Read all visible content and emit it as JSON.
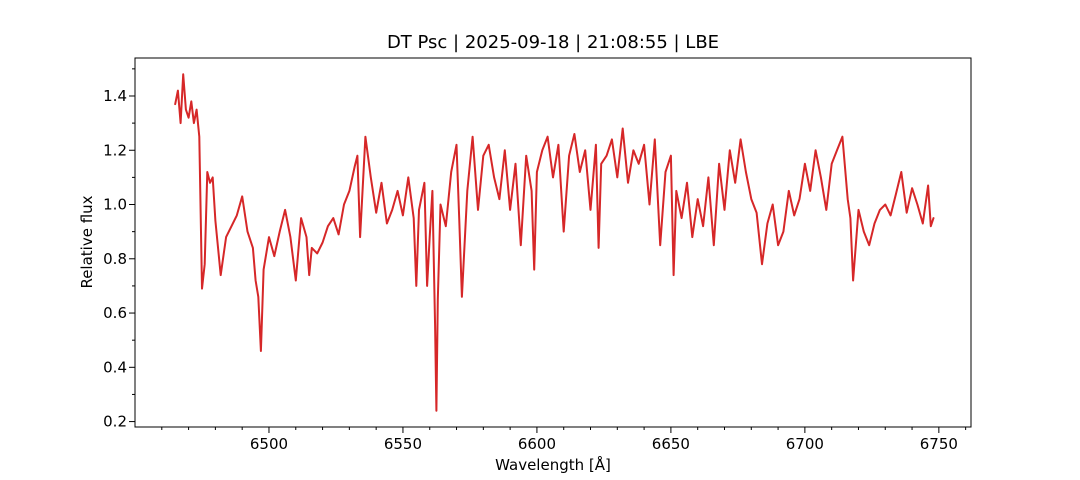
{
  "chart_data": {
    "type": "line",
    "title": "DT Psc | 2025-09-18 | 21:08:55 | LBE",
    "xlabel": "Wavelength [Å]",
    "ylabel": "Relative flux",
    "xlim": [
      6450,
      6762
    ],
    "ylim": [
      0.18,
      1.54
    ],
    "xticks": [
      6500,
      6550,
      6600,
      6650,
      6700,
      6750
    ],
    "xticks_minor": [
      6460,
      6470,
      6480,
      6490,
      6510,
      6520,
      6530,
      6540,
      6560,
      6570,
      6580,
      6590,
      6610,
      6620,
      6630,
      6640,
      6660,
      6670,
      6680,
      6690,
      6710,
      6720,
      6730,
      6740,
      6760
    ],
    "yticks": [
      0.2,
      0.4,
      0.6,
      0.8,
      1.0,
      1.2,
      1.4
    ],
    "yticks_minor": [
      0.3,
      0.5,
      0.7,
      0.9,
      1.1,
      1.3,
      1.5
    ],
    "xtick_labels": [
      "6500",
      "6550",
      "6600",
      "6650",
      "6700",
      "6750"
    ],
    "ytick_labels": [
      "0.2",
      "0.4",
      "0.6",
      "0.8",
      "1.0",
      "1.2",
      "1.4"
    ],
    "grid": false,
    "series": [
      {
        "color": "#d62728",
        "x": [
          6465,
          6466,
          6467,
          6468,
          6469,
          6470,
          6471,
          6472,
          6473,
          6474,
          6475,
          6476,
          6477,
          6478,
          6479,
          6480,
          6482,
          6484,
          6486,
          6488,
          6490,
          6492,
          6494,
          6495,
          6496,
          6497,
          6498,
          6500,
          6502,
          6504,
          6506,
          6508,
          6510,
          6512,
          6514,
          6515,
          6516,
          6518,
          6520,
          6522,
          6524,
          6526,
          6528,
          6530,
          6532,
          6533,
          6534,
          6536,
          6538,
          6540,
          6542,
          6544,
          6546,
          6548,
          6550,
          6552,
          6554,
          6555,
          6556,
          6558,
          6559,
          6560,
          6561,
          6562,
          6562.5,
          6563,
          6564,
          6566,
          6568,
          6570,
          6571,
          6572,
          6574,
          6576,
          6578,
          6580,
          6582,
          6584,
          6586,
          6588,
          6590,
          6592,
          6594,
          6596,
          6598,
          6599,
          6600,
          6602,
          6604,
          6606,
          6608,
          6610,
          6612,
          6614,
          6616,
          6618,
          6620,
          6622,
          6623,
          6624,
          6626,
          6628,
          6630,
          6632,
          6634,
          6636,
          6638,
          6640,
          6642,
          6644,
          6646,
          6648,
          6650,
          6651,
          6652,
          6654,
          6656,
          6658,
          6660,
          6662,
          6664,
          6666,
          6668,
          6670,
          6672,
          6674,
          6676,
          6678,
          6680,
          6682,
          6684,
          6686,
          6688,
          6690,
          6692,
          6694,
          6696,
          6698,
          6700,
          6702,
          6704,
          6706,
          6708,
          6710,
          6712,
          6714,
          6716,
          6717,
          6718,
          6720,
          6722,
          6724,
          6726,
          6728,
          6730,
          6732,
          6734,
          6736,
          6738,
          6740,
          6742,
          6744,
          6746,
          6747,
          6748
        ],
        "y": [
          1.37,
          1.42,
          1.3,
          1.48,
          1.35,
          1.32,
          1.38,
          1.3,
          1.35,
          1.25,
          0.69,
          0.78,
          1.12,
          1.08,
          1.1,
          0.94,
          0.74,
          0.88,
          0.92,
          0.96,
          1.03,
          0.9,
          0.84,
          0.72,
          0.66,
          0.46,
          0.76,
          0.88,
          0.81,
          0.9,
          0.98,
          0.88,
          0.72,
          0.95,
          0.88,
          0.74,
          0.84,
          0.82,
          0.86,
          0.92,
          0.95,
          0.89,
          1.0,
          1.05,
          1.14,
          1.18,
          0.88,
          1.25,
          1.1,
          0.97,
          1.08,
          0.93,
          0.98,
          1.05,
          0.96,
          1.1,
          0.95,
          0.7,
          0.98,
          1.08,
          0.7,
          0.88,
          1.05,
          0.55,
          0.24,
          0.65,
          1.0,
          0.92,
          1.12,
          1.22,
          0.95,
          0.66,
          1.05,
          1.25,
          0.98,
          1.18,
          1.22,
          1.1,
          1.02,
          1.2,
          0.98,
          1.15,
          0.85,
          1.18,
          1.05,
          0.76,
          1.12,
          1.2,
          1.25,
          1.1,
          1.22,
          0.9,
          1.18,
          1.26,
          1.12,
          1.2,
          0.98,
          1.22,
          0.84,
          1.15,
          1.18,
          1.24,
          1.1,
          1.28,
          1.08,
          1.2,
          1.15,
          1.22,
          1.0,
          1.24,
          0.85,
          1.12,
          1.18,
          0.74,
          1.05,
          0.95,
          1.08,
          0.88,
          1.02,
          0.92,
          1.1,
          0.85,
          1.15,
          0.98,
          1.2,
          1.08,
          1.24,
          1.12,
          1.02,
          0.97,
          0.78,
          0.93,
          1.0,
          0.85,
          0.9,
          1.05,
          0.96,
          1.02,
          1.15,
          1.05,
          1.2,
          1.1,
          0.98,
          1.15,
          1.2,
          1.25,
          1.02,
          0.95,
          0.72,
          0.98,
          0.9,
          0.85,
          0.93,
          0.98,
          1.0,
          0.96,
          1.04,
          1.12,
          0.97,
          1.06,
          1.0,
          0.93,
          1.07,
          0.92,
          0.95
        ]
      }
    ]
  }
}
